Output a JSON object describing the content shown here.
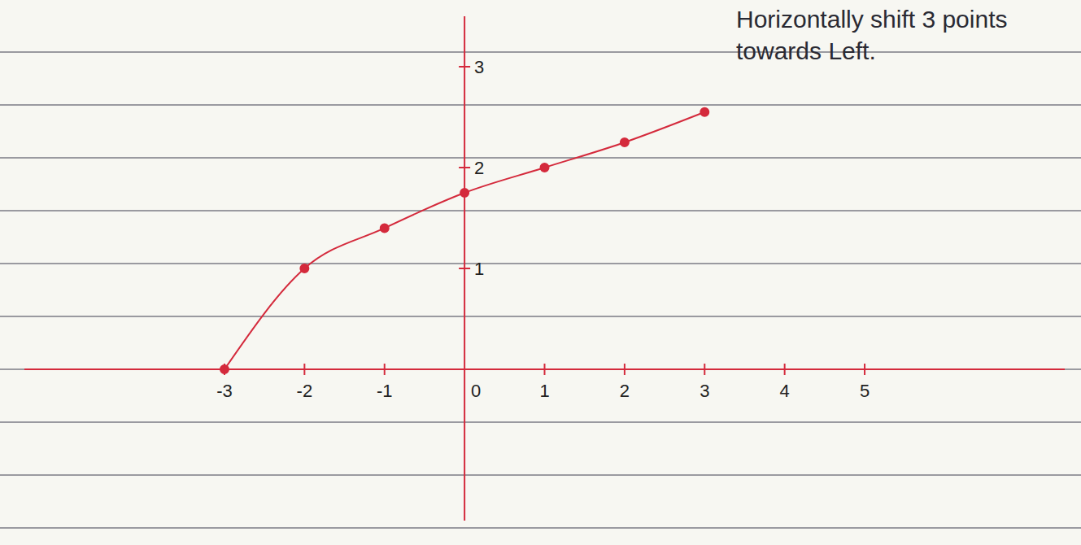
{
  "chart_data": {
    "type": "line",
    "annotation": "Horizontally shift 3 points towards Left.",
    "x": [
      -3,
      -2,
      -1,
      0,
      1,
      2,
      3
    ],
    "values": [
      0,
      1,
      1.4,
      1.75,
      2,
      2.25,
      2.55
    ],
    "color": "#d42a3c",
    "marker": "circle",
    "line_style": "solid",
    "xlim": [
      -5.5,
      7.5
    ],
    "ylim": [
      -1.5,
      3.5
    ],
    "xticks": [
      -3,
      -2,
      -1,
      0,
      1,
      2,
      3,
      4,
      5
    ],
    "yticks": [
      1,
      2,
      3
    ],
    "grid": false
  }
}
